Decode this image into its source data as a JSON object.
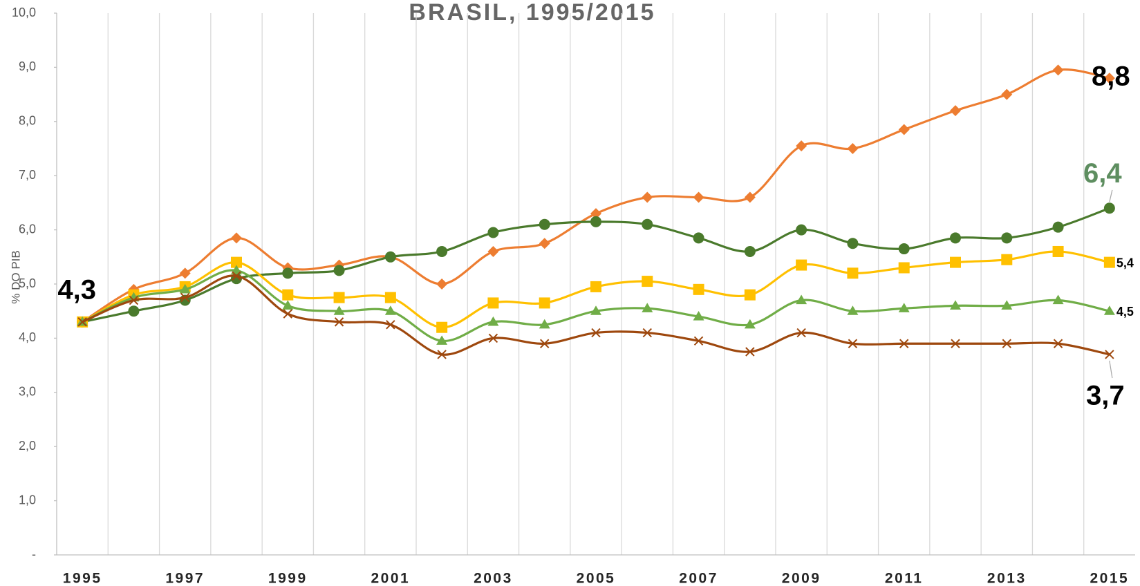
{
  "chart_data": {
    "type": "line",
    "title": "BRASIL, 1995/2015",
    "y_label": "% DO PIB",
    "categories": [
      "1995",
      null,
      "1997",
      null,
      "1999",
      null,
      "2001",
      null,
      "2003",
      null,
      "2005",
      null,
      "2007",
      null,
      "2009",
      null,
      "2011",
      null,
      "2013",
      null,
      "2015"
    ],
    "ylim": [
      0,
      10
    ],
    "yticks": [
      {
        "value": 0,
        "label": "-"
      },
      {
        "value": 1,
        "label": "1,0"
      },
      {
        "value": 2,
        "label": "2,0"
      },
      {
        "value": 3,
        "label": "3,0"
      },
      {
        "value": 4,
        "label": "4,0"
      },
      {
        "value": 5,
        "label": "5,0"
      },
      {
        "value": 6,
        "label": "6,0"
      },
      {
        "value": 7,
        "label": "7,0"
      },
      {
        "value": 8,
        "label": "8,0"
      },
      {
        "value": 9,
        "label": "9,0"
      },
      {
        "value": 10,
        "label": "10,0"
      }
    ],
    "grid": true,
    "smooth": true,
    "series": [
      {
        "color": "#ED7D31",
        "marker": "diamond",
        "values": [
          4.3,
          4.9,
          5.2,
          5.85,
          5.3,
          5.35,
          5.5,
          5.0,
          5.6,
          5.75,
          6.3,
          6.6,
          6.6,
          6.6,
          7.55,
          7.5,
          7.85,
          8.2,
          8.5,
          8.95,
          8.8
        ],
        "value_labels": [
          "4,3",
          null,
          null,
          null,
          null,
          null,
          null,
          null,
          null,
          null,
          null,
          null,
          null,
          null,
          null,
          null,
          null,
          null,
          null,
          null,
          "8,8"
        ]
      },
      {
        "color": "#4A7A2C",
        "marker": "circle",
        "values": [
          4.3,
          4.5,
          4.7,
          5.1,
          5.2,
          5.25,
          5.5,
          5.6,
          5.95,
          6.1,
          6.15,
          6.1,
          5.85,
          5.6,
          6.0,
          5.75,
          5.65,
          5.85,
          5.85,
          6.05,
          6.4
        ],
        "value_labels": [
          null,
          null,
          null,
          null,
          null,
          null,
          null,
          null,
          null,
          null,
          null,
          null,
          null,
          null,
          null,
          null,
          null,
          null,
          null,
          null,
          "6,4"
        ]
      },
      {
        "color": "#FFC000",
        "marker": "square",
        "values": [
          4.3,
          4.8,
          4.95,
          5.4,
          4.8,
          4.75,
          4.75,
          4.2,
          4.65,
          4.65,
          4.95,
          5.05,
          4.9,
          4.8,
          5.35,
          5.2,
          5.3,
          5.4,
          5.45,
          5.6,
          5.4
        ],
        "value_labels": [
          null,
          null,
          null,
          null,
          null,
          null,
          null,
          null,
          null,
          null,
          null,
          null,
          null,
          null,
          null,
          null,
          null,
          null,
          null,
          null,
          "5,4"
        ]
      },
      {
        "color": "#70AD47",
        "marker": "triangle",
        "values": [
          4.3,
          4.75,
          4.9,
          5.25,
          4.6,
          4.5,
          4.5,
          3.95,
          4.3,
          4.25,
          4.5,
          4.55,
          4.4,
          4.25,
          4.7,
          4.5,
          4.55,
          4.6,
          4.6,
          4.7,
          4.5
        ],
        "value_labels": [
          null,
          null,
          null,
          null,
          null,
          null,
          null,
          null,
          null,
          null,
          null,
          null,
          null,
          null,
          null,
          null,
          null,
          null,
          null,
          null,
          "4,5"
        ]
      },
      {
        "color": "#9E480E",
        "marker": "x",
        "values": [
          4.3,
          4.7,
          4.75,
          5.15,
          4.45,
          4.3,
          4.25,
          3.7,
          4.0,
          3.9,
          4.1,
          4.1,
          3.95,
          3.75,
          4.1,
          3.9,
          3.9,
          3.9,
          3.9,
          3.9,
          3.7
        ],
        "value_labels": [
          null,
          null,
          null,
          null,
          null,
          null,
          null,
          null,
          null,
          null,
          null,
          null,
          null,
          null,
          null,
          null,
          null,
          null,
          null,
          null,
          "3,7"
        ]
      }
    ]
  }
}
